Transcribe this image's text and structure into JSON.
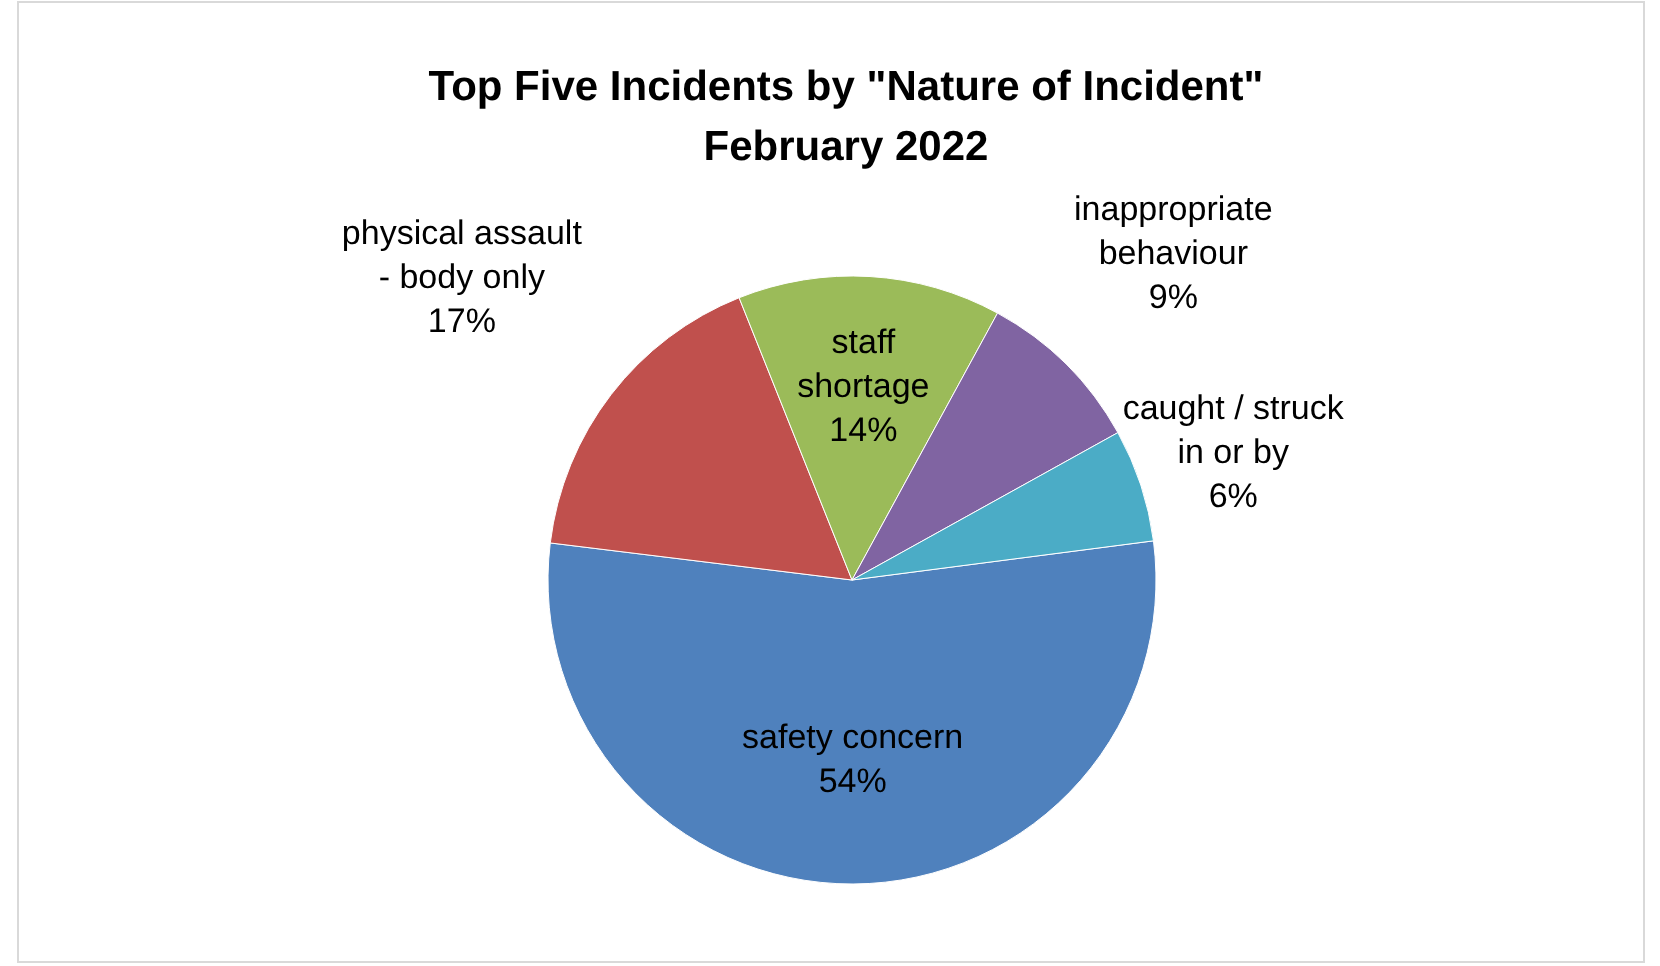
{
  "chart_data": {
    "type": "pie",
    "title": "Top Five Incidents by \"Nature of Incident\"\nFebruary 2022",
    "categories": [
      "safety concern",
      "physical assault\n- body only",
      "staff\nshortage",
      "inappropriate\nbehaviour",
      "caught / struck\nin or by"
    ],
    "values": [
      54,
      17,
      14,
      9,
      6
    ],
    "value_labels": [
      "54%",
      "17%",
      "14%",
      "9%",
      "6%"
    ],
    "colors": [
      "#4f81bd",
      "#c0504d",
      "#9bbb59",
      "#8064a2",
      "#4bacc6"
    ],
    "legend": false
  }
}
